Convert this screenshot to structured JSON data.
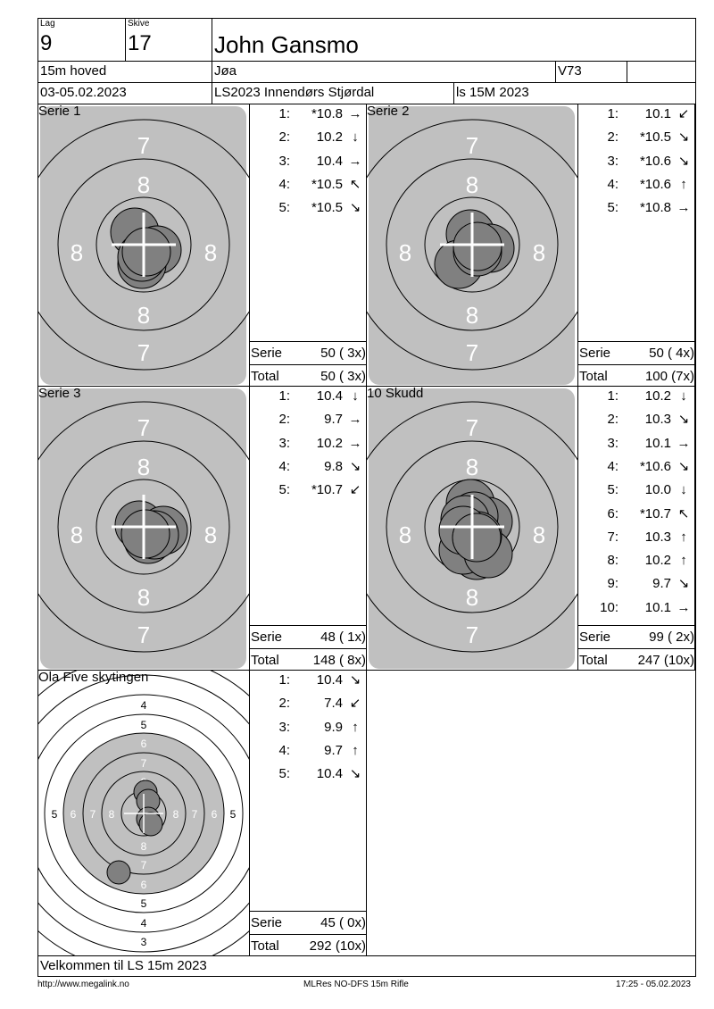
{
  "header": {
    "lag_label": "Lag",
    "lag": "9",
    "skive_label": "Skive",
    "skive": "17",
    "name": "John Gansmo",
    "class": "15m hoved",
    "club": "Jøa",
    "code": "V73",
    "extra": "",
    "date": "03-05.02.2023",
    "event": "LS2023 Innendørs Stjørdal",
    "competition": "ls 15M 2023"
  },
  "panels": [
    {
      "title": "Serie 1",
      "shots": [
        {
          "n": "1:",
          "v": "*10.8",
          "dir": "→"
        },
        {
          "n": "2:",
          "v": "10.2",
          "dir": "↓"
        },
        {
          "n": "3:",
          "v": "10.4",
          "dir": "→"
        },
        {
          "n": "4:",
          "v": "*10.5",
          "dir": "↖"
        },
        {
          "n": "5:",
          "v": "*10.5",
          "dir": "↘"
        }
      ],
      "serie_label": "Serie",
      "serie": "50 ( 3x)",
      "total_label": "Total",
      "total": "50 ( 3x)"
    },
    {
      "title": "Serie 2",
      "shots": [
        {
          "n": "1:",
          "v": "10.1",
          "dir": "↙"
        },
        {
          "n": "2:",
          "v": "*10.5",
          "dir": "↘"
        },
        {
          "n": "3:",
          "v": "*10.6",
          "dir": "↘"
        },
        {
          "n": "4:",
          "v": "*10.6",
          "dir": "↑"
        },
        {
          "n": "5:",
          "v": "*10.8",
          "dir": "→"
        }
      ],
      "serie_label": "Serie",
      "serie": "50 ( 4x)",
      "total_label": "Total",
      "total": "100 (7x)"
    },
    {
      "title": "Serie 3",
      "shots": [
        {
          "n": "1:",
          "v": "10.4",
          "dir": "↓"
        },
        {
          "n": "2:",
          "v": "9.7",
          "dir": "→"
        },
        {
          "n": "3:",
          "v": "10.2",
          "dir": "→"
        },
        {
          "n": "4:",
          "v": "9.8",
          "dir": "↘"
        },
        {
          "n": "5:",
          "v": "*10.7",
          "dir": "↙"
        }
      ],
      "serie_label": "Serie",
      "serie": "48 ( 1x)",
      "total_label": "Total",
      "total": "148 ( 8x)"
    },
    {
      "title": "10 Skudd",
      "shots": [
        {
          "n": "1:",
          "v": "10.2",
          "dir": "↓"
        },
        {
          "n": "2:",
          "v": "10.3",
          "dir": "↘"
        },
        {
          "n": "3:",
          "v": "10.1",
          "dir": "→"
        },
        {
          "n": "4:",
          "v": "*10.6",
          "dir": "↘"
        },
        {
          "n": "5:",
          "v": "10.0",
          "dir": "↓"
        },
        {
          "n": "6:",
          "v": "*10.7",
          "dir": "↖"
        },
        {
          "n": "7:",
          "v": "10.3",
          "dir": "↑"
        },
        {
          "n": "8:",
          "v": "10.2",
          "dir": "↑"
        },
        {
          "n": "9:",
          "v": "9.7",
          "dir": "↘"
        },
        {
          "n": "10:",
          "v": "10.1",
          "dir": "→"
        }
      ],
      "serie_label": "Serie",
      "serie": "99 ( 2x)",
      "total_label": "Total",
      "total": "247 (10x)"
    },
    {
      "title": "Ola Five skytingen",
      "shots": [
        {
          "n": "1:",
          "v": "10.4",
          "dir": "↘"
        },
        {
          "n": "2:",
          "v": "7.4",
          "dir": "↙"
        },
        {
          "n": "3:",
          "v": "9.9",
          "dir": "↑"
        },
        {
          "n": "4:",
          "v": "9.7",
          "dir": "↑"
        },
        {
          "n": "5:",
          "v": "10.4",
          "dir": "↘"
        }
      ],
      "serie_label": "Serie",
      "serie": "45 ( 0x)",
      "total_label": "Total",
      "total": "292 (10x)"
    }
  ],
  "message": "Velkommen til LS 15m 2023",
  "footer": {
    "url": "http://www.megalink.no",
    "software": "MLRes NO-DFS 15m Rifle",
    "timestamp": "17:25 - 05.02.2023"
  },
  "colors": {
    "target_gray": "#c0c0c0",
    "shot": "#808080",
    "ring_label": "#ffffff"
  }
}
